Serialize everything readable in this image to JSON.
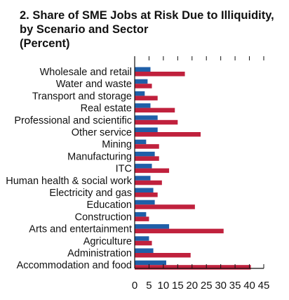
{
  "chart_data": {
    "type": "bar",
    "orientation": "horizontal",
    "title": "2. Share of SME Jobs at Risk Due to Illiquidity,",
    "subtitle": "by Scenario and Sector",
    "unit_label": "(Percent)",
    "categories": [
      "Wholesale and retail",
      "Water and waste",
      "Transport and storage",
      "Real estate",
      "Professional and scientific",
      "Other service",
      "Mining",
      "Manufacturing",
      "ITC",
      "Human health & social work",
      "Electricity and gas",
      "Education",
      "Construction",
      "Arts and entertainment",
      "Agriculture",
      "Administration",
      "Accommodation and food"
    ],
    "series": [
      {
        "color": "#1f5fa8",
        "values": [
          5.5,
          4.5,
          3.5,
          5.5,
          8,
          8,
          4,
          7,
          6,
          5.5,
          6.5,
          7,
          4,
          12,
          5,
          6.5,
          11
        ]
      },
      {
        "color": "#c0213d",
        "values": [
          17.5,
          6,
          8,
          14,
          15,
          23,
          8.5,
          8.5,
          12,
          9.5,
          8,
          21,
          5,
          31,
          6,
          19.5,
          40.5
        ]
      }
    ],
    "x_ticks": [
      0,
      5,
      10,
      15,
      20,
      25,
      30,
      35,
      40,
      45
    ],
    "xlim": [
      0,
      45
    ],
    "grid": false,
    "legend": "none"
  }
}
